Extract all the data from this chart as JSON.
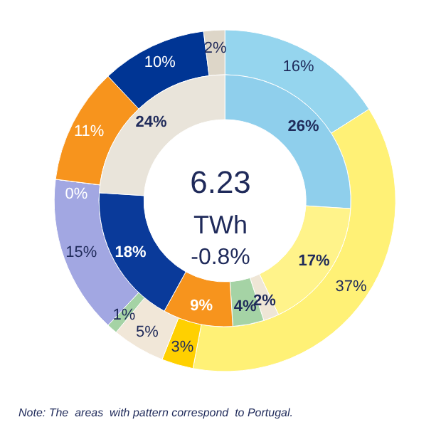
{
  "chart_data": [
    {
      "type": "donut",
      "categories": [
        null,
        null,
        null,
        null,
        null,
        null,
        null,
        null,
        null,
        null
      ],
      "values": [
        16,
        37,
        3,
        5,
        1,
        15,
        0,
        11,
        10,
        2
      ],
      "colors": [
        "#95d5ee",
        "#fff176",
        "#ffd000",
        "#f1e7d8",
        "#a5d3a5",
        "#a2a7e2",
        "#f7941d",
        "#f7941d",
        "#003594",
        "#ddd6c8"
      ],
      "value_labels": [
        "16%",
        "37%",
        "3%",
        "5%",
        "1%",
        "15%",
        "0%",
        "11%",
        "10%",
        "2%"
      ],
      "annotations": [
        "6.23",
        "TWh",
        "-0.8%",
        "Note: The  areas  with pattern correspond  to Portugal."
      ]
    },
    {
      "type": "donut",
      "categories": [
        null,
        null,
        null,
        null,
        null,
        null,
        null
      ],
      "values": [
        26,
        17,
        2,
        4,
        9,
        18,
        24
      ],
      "colors": [
        "#8fcfec",
        "#fff38a",
        "#efe6d6",
        "#a5d3a5",
        "#f7941d",
        "#0a3a9a",
        "#e9e4da"
      ],
      "value_labels": [
        "26%",
        "17%",
        "2%",
        "4%",
        "9%",
        "18%",
        "24%"
      ]
    }
  ]
}
